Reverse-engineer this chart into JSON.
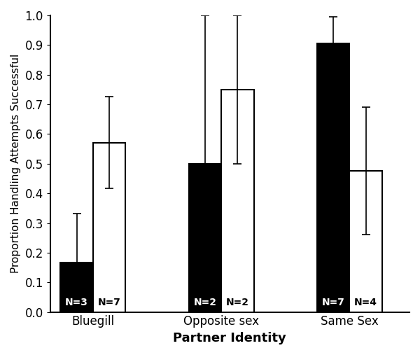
{
  "categories": [
    "Bluegill",
    "Opposite sex",
    "Same Sex"
  ],
  "male_values": [
    0.167,
    0.5,
    0.905
  ],
  "female_values": [
    0.571,
    0.75,
    0.476
  ],
  "male_errors": [
    0.165,
    0.5,
    0.09
  ],
  "female_errors": [
    0.155,
    0.25,
    0.215
  ],
  "male_n": [
    "N=3",
    "N=2",
    "N=7"
  ],
  "female_n": [
    "N=7",
    "N=2",
    "N=4"
  ],
  "male_color": "#000000",
  "female_color": "#ffffff",
  "bar_edge_color": "#000000",
  "bar_width": 0.38,
  "group_positions": [
    0.5,
    2.0,
    3.5
  ],
  "xlabel": "Partner Identity",
  "ylabel": "Proportion Handling Attempts Successful",
  "ylim": [
    0,
    1.0
  ],
  "yticks": [
    0,
    0.1,
    0.2,
    0.3,
    0.4,
    0.5,
    0.6,
    0.7,
    0.8,
    0.9,
    1.0
  ],
  "figsize": [
    6.0,
    5.07
  ],
  "dpi": 100,
  "xlabel_fontsize": 13,
  "ylabel_fontsize": 11,
  "tick_fontsize": 12,
  "n_fontsize": 10,
  "capsize": 4,
  "elinewidth": 1.2,
  "bar_linewidth": 1.5
}
